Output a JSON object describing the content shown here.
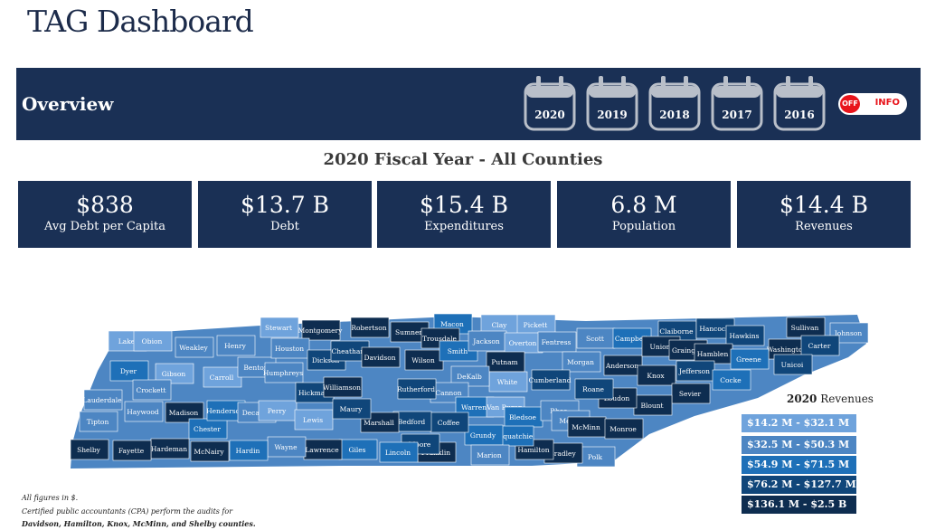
{
  "page_title": "TAG Dashboard",
  "overview_label": "Overview",
  "years": [
    "2020",
    "2019",
    "2018",
    "2017",
    "2016"
  ],
  "toggle": {
    "state": "OFF",
    "label": "INFO"
  },
  "subtitle": "2020 Fiscal Year - All Counties",
  "kpis": [
    {
      "value": "$838",
      "label": "Avg Debt per Capita"
    },
    {
      "value": "$13.7 B",
      "label": "Debt"
    },
    {
      "value": "$15.4 B",
      "label": "Expenditures"
    },
    {
      "value": "6.8 M",
      "label": "Population"
    },
    {
      "value": "$14.4 B",
      "label": "Revenues"
    }
  ],
  "legend": {
    "title_bold": "2020",
    "title_rest": "Revenues",
    "items": [
      {
        "label": "$14.2 M - $32.1 M",
        "color": "#6fa3dc"
      },
      {
        "label": "$32.5 M - $50.3 M",
        "color": "#4d86c3"
      },
      {
        "label": "$54.9 M - $71.5 M",
        "color": "#1e70b8"
      },
      {
        "label": "$76.2 M - $127.7 M",
        "color": "#10467a"
      },
      {
        "label": "$136.1 M - $2.5 B",
        "color": "#0e2d50"
      }
    ]
  },
  "counties": [
    "Lake",
    "Obion",
    "Weakley",
    "Henry",
    "Stewart",
    "Montgomery",
    "Robertson",
    "Sumner",
    "Macon",
    "Clay",
    "Pickett",
    "Scott",
    "Campbell",
    "Claiborne",
    "Hancock",
    "Hawkins",
    "Sullivan",
    "Johnson",
    "Dyer",
    "Gibson",
    "Carroll",
    "Benton",
    "Houston",
    "Humphreys",
    "Dickson",
    "Cheatham",
    "Davidson",
    "Wilson",
    "Trousdale",
    "Smith",
    "Jackson",
    "Overton",
    "Fentress",
    "Putnam",
    "Morgan",
    "Anderson",
    "Union",
    "Grainger",
    "Hamblen",
    "Washington",
    "Carter",
    "Unicoi",
    "Greene",
    "Jefferson",
    "Knox",
    "Cocke",
    "Sevier",
    "Blount",
    "Loudon",
    "Roane",
    "Cumberland",
    "White",
    "DeKalb",
    "Cannon",
    "Warren",
    "Van Buren",
    "Bledsoe",
    "Rhea",
    "Meigs",
    "McMinn",
    "Monroe",
    "Polk",
    "Bradley",
    "Hamilton",
    "Sequatchie",
    "Grundy",
    "Marion",
    "Franklin",
    "Moore",
    "Coffee",
    "Bedford",
    "Marshall",
    "Lincoln",
    "Giles",
    "Lawrence",
    "Wayne",
    "Hardin",
    "McNairy",
    "Hardeman",
    "Fayette",
    "Shelby",
    "Tipton",
    "Lauderdale",
    "Haywood",
    "Crockett",
    "Madison",
    "Chester",
    "Henderson",
    "Decatur",
    "Perry",
    "Lewis",
    "Hickman",
    "Maury",
    "Williamson",
    "Rutherford"
  ],
  "notes": [
    "All figures in $.",
    "Certified public accountants (CPA) perform the audits for",
    "Davidson, Hamilton, Knox, McMinn, and Shelby counties."
  ]
}
